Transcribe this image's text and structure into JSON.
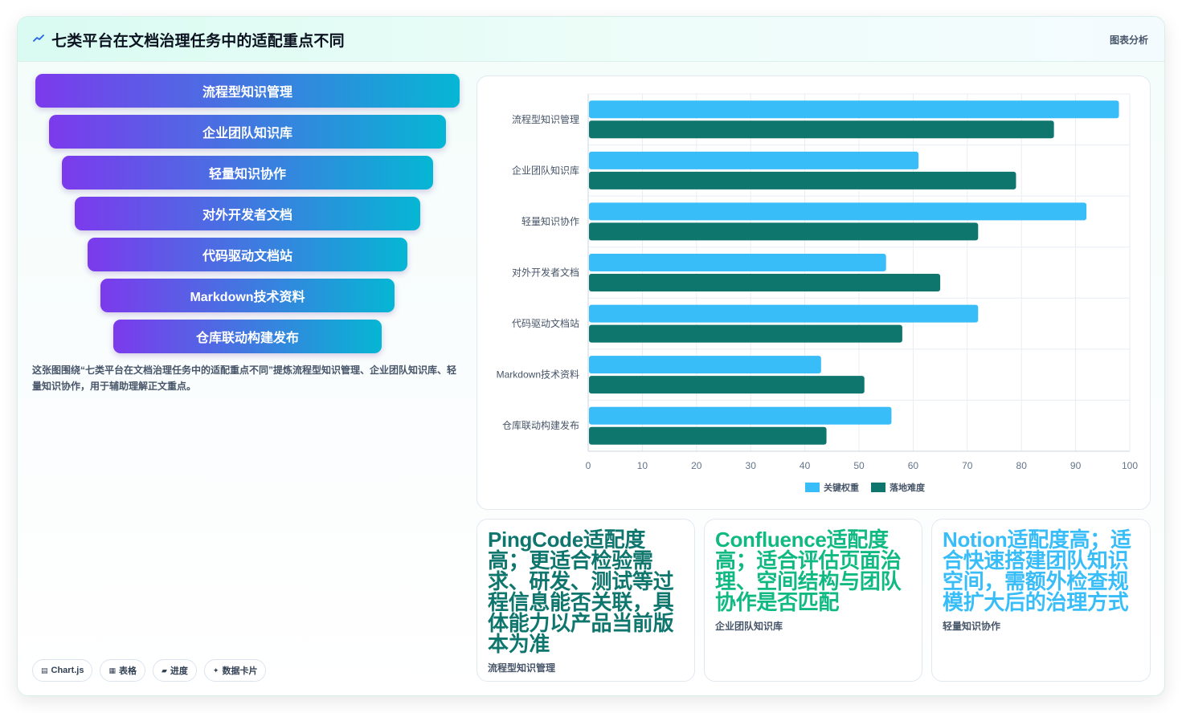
{
  "header": {
    "title": "七类平台在文档治理任务中的适配重点不同",
    "tag": "图表分析",
    "icon": "trend-icon"
  },
  "funnel": {
    "items": [
      "流程型知识管理",
      "企业团队知识库",
      "轻量知识协作",
      "对外开发者文档",
      "代码驱动文档站",
      "Markdown技术资料",
      "仓库联动构建发布"
    ]
  },
  "description": "这张图围绕“七类平台在文档治理任务中的适配重点不同”提炼流程型知识管理、企业团队知识库、轻量知识协作，用于辅助理解正文重点。",
  "pills": [
    {
      "icon": "chart-icon",
      "glyph": "▤",
      "label": "Chart.js"
    },
    {
      "icon": "table-icon",
      "glyph": "▦",
      "label": "表格"
    },
    {
      "icon": "progress-icon",
      "glyph": "▰",
      "label": "进度"
    },
    {
      "icon": "sparkle-icon",
      "glyph": "✦",
      "label": "数据卡片"
    }
  ],
  "chart_data": {
    "type": "bar",
    "orientation": "horizontal",
    "categories": [
      "流程型知识管理",
      "企业团队知识库",
      "轻量知识协作",
      "对外开发者文档",
      "代码驱动文档站",
      "Markdown技术资料",
      "仓库联动构建发布"
    ],
    "series": [
      {
        "name": "关键权重",
        "color": "#38bdf8",
        "values": [
          98,
          61,
          92,
          55,
          72,
          43,
          56
        ]
      },
      {
        "name": "落地难度",
        "color": "#0f766e",
        "values": [
          86,
          79,
          72,
          65,
          58,
          51,
          44
        ]
      }
    ],
    "xlim": [
      0,
      100
    ],
    "xticks": [
      0,
      10,
      20,
      30,
      40,
      50,
      60,
      70,
      80,
      90,
      100
    ],
    "grid": true,
    "legend": "bottom"
  },
  "cards": [
    {
      "title": "PingCode适配度高；更适合检验需求、研发、测试等过程信息能否关联，具体能力以产品当前版本为准",
      "subtitle": "流程型知识管理",
      "color": "#0f766e"
    },
    {
      "title": "Confluence适配度高；适合评估页面治理、空间结构与团队协作是否匹配",
      "subtitle": "企业团队知识库",
      "color": "#10b981"
    },
    {
      "title": "Notion适配度高；适合快速搭建团队知识空间，需额外检查规模扩大后的治理方式",
      "subtitle": "轻量知识协作",
      "color": "#38bdf8"
    }
  ]
}
